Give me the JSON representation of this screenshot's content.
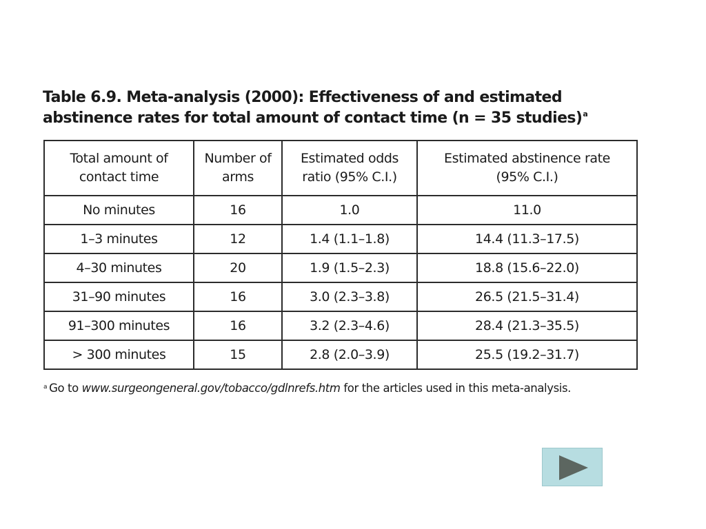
{
  "title": {
    "text": "Table 6.9. Meta-analysis (2000): Effectiveness of and estimated abstinence rates for total amount of contact time (n = 35 studies)",
    "footnote_marker": "a"
  },
  "table": {
    "headers": {
      "col1_line1": "Total amount of",
      "col1_line2": "contact time",
      "col2_line1": "Number of",
      "col2_line2": "arms",
      "col3_line1": "Estimated odds",
      "col3_line2": "ratio (95% C.I.)",
      "col4_line1": "Estimated abstinence rate",
      "col4_line2": "(95% C.I.)"
    },
    "rows": [
      {
        "time": "No minutes",
        "arms": "16",
        "odds": "1.0",
        "rate": "11.0"
      },
      {
        "time": "1–3 minutes",
        "arms": "12",
        "odds": "1.4 (1.1–1.8)",
        "rate": "14.4 (11.3–17.5)"
      },
      {
        "time": "4–30 minutes",
        "arms": "20",
        "odds": "1.9 (1.5–2.3)",
        "rate": "18.8 (15.6–22.0)"
      },
      {
        "time": "31–90 minutes",
        "arms": "16",
        "odds": "3.0 (2.3–3.8)",
        "rate": "26.5 (21.5–31.4)"
      },
      {
        "time": "91–300 minutes",
        "arms": "16",
        "odds": "3.2 (2.3–4.6)",
        "rate": "28.4 (21.3–35.5)"
      },
      {
        "time": "> 300 minutes",
        "arms": "15",
        "odds": "2.8 (2.0–3.9)",
        "rate": "25.5 (19.2–31.7)"
      }
    ]
  },
  "footnote": {
    "marker": "a",
    "prefix": "Go to ",
    "url": "www.surgeongeneral.gov/tobacco/gdlnrefs.htm",
    "suffix": " for the articles used in this meta-analysis."
  },
  "navigation": {
    "next_icon": "play-icon",
    "button_color": "#b7dde1",
    "icon_color": "#5c6660"
  }
}
